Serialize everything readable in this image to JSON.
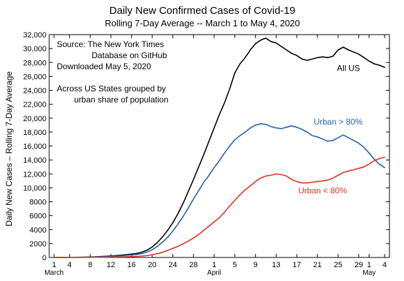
{
  "chart_data": {
    "type": "line",
    "title": "Daily New Confirmed Cases of Covid-19",
    "subtitle": "Rolling 7-Day Average -- March 1 to May 4, 2020",
    "xlabel": "",
    "ylabel": "Daily New Cases – Rolling 7-Day Average",
    "ylim": [
      0,
      32000
    ],
    "xlim": [
      "2020-03-01",
      "2020-05-04"
    ],
    "y_ticks": [
      "0",
      "2000",
      "4000",
      "6000",
      "8000",
      "10,000",
      "12,000",
      "14,000",
      "16,000",
      "18,000",
      "20,000",
      "22,000",
      "24,000",
      "26,000",
      "28,000",
      "30,000",
      "32,000"
    ],
    "x_ticks": [
      {
        "date": "2020-03-01",
        "label": "1"
      },
      {
        "date": "2020-03-04",
        "label": "4"
      },
      {
        "date": "2020-03-08",
        "label": "8"
      },
      {
        "date": "2020-03-12",
        "label": "12"
      },
      {
        "date": "2020-03-16",
        "label": "16"
      },
      {
        "date": "2020-03-20",
        "label": "20"
      },
      {
        "date": "2020-03-24",
        "label": "24"
      },
      {
        "date": "2020-03-28",
        "label": "28"
      },
      {
        "date": "2020-04-01",
        "label": "1"
      },
      {
        "date": "2020-04-05",
        "label": "5"
      },
      {
        "date": "2020-04-09",
        "label": "9"
      },
      {
        "date": "2020-04-13",
        "label": "13"
      },
      {
        "date": "2020-04-17",
        "label": "17"
      },
      {
        "date": "2020-04-21",
        "label": "21"
      },
      {
        "date": "2020-04-25",
        "label": "25"
      },
      {
        "date": "2020-04-29",
        "label": "29"
      },
      {
        "date": "2020-05-01",
        "label": "1"
      },
      {
        "date": "2020-05-04",
        "label": "4"
      }
    ],
    "month_labels": [
      {
        "date": "2020-03-01",
        "label": "March"
      },
      {
        "date": "2020-04-01",
        "label": "April"
      },
      {
        "date": "2020-05-01",
        "label": "May"
      }
    ],
    "grid": false,
    "x": [
      "2020-03-01",
      "2020-03-02",
      "2020-03-03",
      "2020-03-04",
      "2020-03-05",
      "2020-03-06",
      "2020-03-07",
      "2020-03-08",
      "2020-03-09",
      "2020-03-10",
      "2020-03-11",
      "2020-03-12",
      "2020-03-13",
      "2020-03-14",
      "2020-03-15",
      "2020-03-16",
      "2020-03-17",
      "2020-03-18",
      "2020-03-19",
      "2020-03-20",
      "2020-03-21",
      "2020-03-22",
      "2020-03-23",
      "2020-03-24",
      "2020-03-25",
      "2020-03-26",
      "2020-03-27",
      "2020-03-28",
      "2020-03-29",
      "2020-03-30",
      "2020-03-31",
      "2020-04-01",
      "2020-04-02",
      "2020-04-03",
      "2020-04-04",
      "2020-04-05",
      "2020-04-06",
      "2020-04-07",
      "2020-04-08",
      "2020-04-09",
      "2020-04-10",
      "2020-04-11",
      "2020-04-12",
      "2020-04-13",
      "2020-04-14",
      "2020-04-15",
      "2020-04-16",
      "2020-04-17",
      "2020-04-18",
      "2020-04-19",
      "2020-04-20",
      "2020-04-21",
      "2020-04-22",
      "2020-04-23",
      "2020-04-24",
      "2020-04-25",
      "2020-04-26",
      "2020-04-27",
      "2020-04-28",
      "2020-04-29",
      "2020-04-30",
      "2020-05-01",
      "2020-05-02",
      "2020-05-03",
      "2020-05-04"
    ],
    "series": [
      {
        "name": "All US",
        "color": "#000000",
        "values": [
          5,
          8,
          12,
          18,
          25,
          35,
          50,
          70,
          95,
          130,
          170,
          215,
          270,
          330,
          400,
          480,
          580,
          760,
          1050,
          1500,
          2150,
          2950,
          3900,
          5000,
          6300,
          7800,
          9500,
          11200,
          13000,
          14800,
          16700,
          18600,
          20500,
          22200,
          24200,
          26500,
          27800,
          28700,
          29800,
          30700,
          31200,
          31500,
          31000,
          30800,
          30300,
          29800,
          29300,
          29000,
          28500,
          28300,
          28500,
          28700,
          28800,
          28700,
          28900,
          29800,
          30200,
          29800,
          29500,
          29200,
          28700,
          28200,
          27800,
          27600,
          27300
        ]
      },
      {
        "name": "Urban > 80%",
        "color": "#1f5fb4",
        "values": [
          4,
          6,
          9,
          13,
          18,
          25,
          35,
          50,
          70,
          95,
          125,
          160,
          200,
          245,
          300,
          360,
          430,
          560,
          780,
          1100,
          1600,
          2200,
          2900,
          3800,
          4800,
          5900,
          7100,
          8400,
          9600,
          10800,
          11800,
          12900,
          13900,
          15000,
          16000,
          16900,
          17500,
          18000,
          18600,
          19000,
          19200,
          19100,
          18800,
          18600,
          18500,
          18700,
          18900,
          18700,
          18400,
          18000,
          17500,
          17300,
          17000,
          16700,
          16800,
          17200,
          17600,
          17200,
          16800,
          16400,
          15800,
          15000,
          14100,
          13400,
          12900
        ]
      },
      {
        "name": "Urban < 80%",
        "color": "#e0301e",
        "values": [
          1,
          2,
          3,
          5,
          7,
          10,
          15,
          20,
          25,
          35,
          45,
          55,
          70,
          85,
          100,
          120,
          150,
          200,
          270,
          400,
          550,
          750,
          1000,
          1300,
          1600,
          1950,
          2350,
          2800,
          3300,
          3900,
          4500,
          5100,
          5700,
          6500,
          7400,
          8200,
          9000,
          9700,
          10300,
          10900,
          11400,
          11700,
          11800,
          12000,
          11900,
          11700,
          11200,
          10900,
          10700,
          10700,
          10800,
          10900,
          11000,
          11100,
          11400,
          11800,
          12200,
          12400,
          12600,
          12800,
          13000,
          13400,
          13900,
          14200,
          14400
        ]
      }
    ],
    "series_labels": [
      {
        "series": "All US",
        "text": "All US",
        "x": "2020-04-27",
        "y": 26800
      },
      {
        "series": "Urban > 80%",
        "text": "Urban > 80%",
        "x": "2020-04-25",
        "y": 19100
      },
      {
        "series": "Urban < 80%",
        "text": "Urban < 80%",
        "x": "2020-04-22",
        "y": 9200
      }
    ],
    "annotations": {
      "source_lines": [
        "Source: The New York Times",
        "Database on GitHub",
        "Downloaded May 5, 2020"
      ],
      "note_lines": [
        "Across US States grouped by",
        "urban share of population"
      ]
    }
  }
}
